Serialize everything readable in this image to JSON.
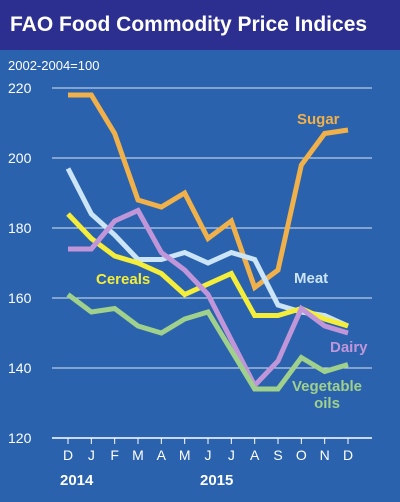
{
  "chart_data": {
    "type": "line",
    "title": "FAO Food Commodity Price Indices",
    "subtitle": "2002-2004=100",
    "x": [
      "D",
      "J",
      "F",
      "M",
      "A",
      "M",
      "J",
      "J",
      "A",
      "S",
      "O",
      "N",
      "D"
    ],
    "year_labels": [
      {
        "label": "2014",
        "index": 0
      },
      {
        "label": "2015",
        "index": 6
      }
    ],
    "ylim": [
      120,
      220
    ],
    "yticks": [
      120,
      140,
      160,
      180,
      200,
      220
    ],
    "grid": true,
    "series": [
      {
        "name": "Sugar",
        "color": "#f0b04a",
        "label_lines": [
          "Sugar"
        ],
        "values": [
          218,
          218,
          207,
          188,
          186,
          190,
          177,
          182,
          163,
          168,
          198,
          207,
          208
        ]
      },
      {
        "name": "Meat",
        "color": "#cbe5f7",
        "label_lines": [
          "Meat"
        ],
        "values": [
          197,
          184,
          178,
          171,
          171,
          173,
          170,
          173,
          171,
          158,
          156,
          155,
          152
        ]
      },
      {
        "name": "Cereals",
        "color": "#f4ee3a",
        "label_lines": [
          "Cereals"
        ],
        "values": [
          184,
          177,
          172,
          170,
          167,
          161,
          164,
          167,
          155,
          155,
          157,
          154,
          152
        ]
      },
      {
        "name": "Dairy",
        "color": "#c096d9",
        "label_lines": [
          "Dairy"
        ],
        "values": [
          174,
          174,
          182,
          185,
          173,
          168,
          161,
          148,
          135,
          142,
          157,
          152,
          150
        ]
      },
      {
        "name": "Vegetable oils",
        "color": "#9fd08c",
        "label_lines": [
          "Vegetable",
          "oils"
        ],
        "values": [
          161,
          156,
          157,
          152,
          150,
          154,
          156,
          145,
          134,
          134,
          143,
          139,
          141
        ]
      }
    ]
  }
}
